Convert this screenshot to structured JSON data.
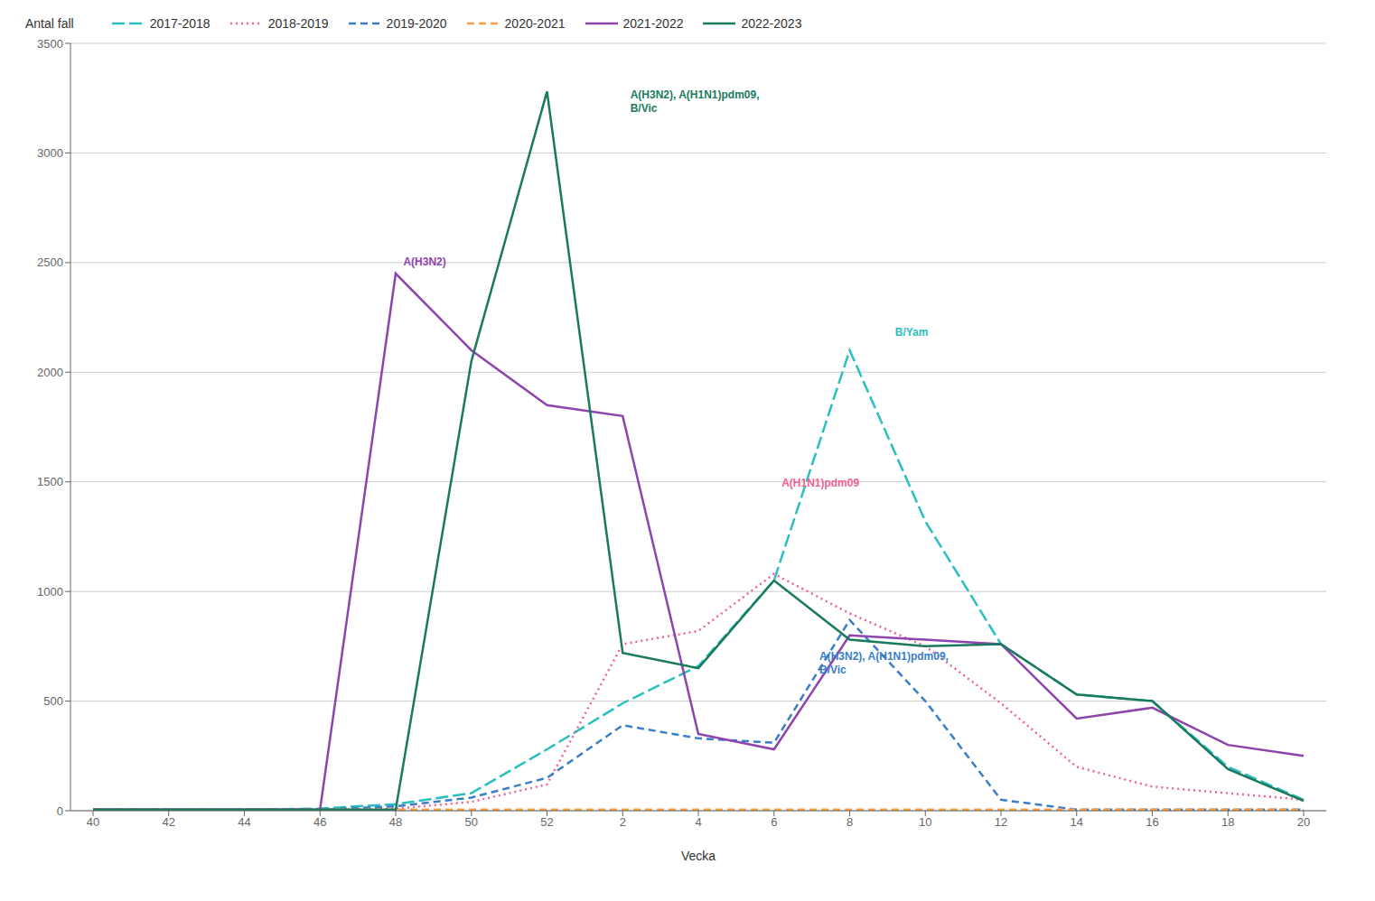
{
  "chart_data": {
    "type": "line",
    "x_label": "Vecka",
    "y_label": "Antal fall",
    "categories": [
      "40",
      "42",
      "44",
      "46",
      "48",
      "50",
      "52",
      "2",
      "4",
      "6",
      "8",
      "10",
      "12",
      "14",
      "16",
      "18",
      "20"
    ],
    "series": [
      {
        "name": "2017-2018",
        "color": "#2ABFBF",
        "line_style": "long_dashed",
        "values": [
          5,
          5,
          5,
          10,
          30,
          80,
          280,
          490,
          660,
          1050,
          2100,
          1320,
          760,
          530,
          500,
          200,
          50
        ]
      },
      {
        "name": "2018-2019",
        "color": "#F06292",
        "line_style": "dotted",
        "values": [
          5,
          5,
          5,
          5,
          10,
          40,
          120,
          760,
          820,
          1080,
          900,
          750,
          490,
          200,
          110,
          80,
          50
        ]
      },
      {
        "name": "2019-2020",
        "color": "#3A7EC8",
        "line_style": "dashed",
        "values": [
          5,
          5,
          5,
          5,
          20,
          60,
          150,
          390,
          330,
          310,
          870,
          500,
          50,
          5,
          5,
          5,
          5
        ]
      },
      {
        "name": "2020-2021",
        "color": "#FFA040",
        "line_style": "dashed",
        "values": [
          5,
          5,
          5,
          5,
          5,
          5,
          5,
          5,
          5,
          5,
          5,
          5,
          5,
          5,
          5,
          5,
          5
        ]
      },
      {
        "name": "2021-2022",
        "color": "#8E44AD",
        "line_style": "solid",
        "values": [
          5,
          5,
          5,
          5,
          2450,
          2100,
          1850,
          1800,
          350,
          280,
          800,
          780,
          760,
          420,
          470,
          300,
          250
        ]
      },
      {
        "name": "2022-2023",
        "color": "#1A7A5E",
        "line_style": "solid",
        "values": [
          5,
          5,
          5,
          5,
          5,
          2050,
          3280,
          720,
          650,
          1050,
          780,
          750,
          760,
          530,
          500,
          190,
          45
        ]
      }
    ],
    "ylim": [
      0,
      3500
    ],
    "yticks": [
      0,
      500,
      1000,
      1500,
      2000,
      2500,
      3000,
      3500
    ],
    "grid": "y",
    "legend": "top",
    "annotations": [
      {
        "text": "A(H3N2)",
        "x": 4.1,
        "y": 2470,
        "color": "#8E44AD"
      },
      {
        "text": "A(H3N2), A(H1N1)pdm09,\nB/Vic",
        "x": 7.1,
        "y": 3170,
        "color": "#1A7A5E"
      },
      {
        "text": "B/Yam",
        "x": 10.6,
        "y": 2150,
        "color": "#2ABFBF"
      },
      {
        "text": "A(H1N1)pdm09",
        "x": 9.1,
        "y": 1460,
        "color": "#F06292"
      },
      {
        "text": "A(H3N2), A(H1N1)pdm09,\nB/Vic",
        "x": 9.6,
        "y": 610,
        "color": "#3A7EC8"
      }
    ]
  }
}
